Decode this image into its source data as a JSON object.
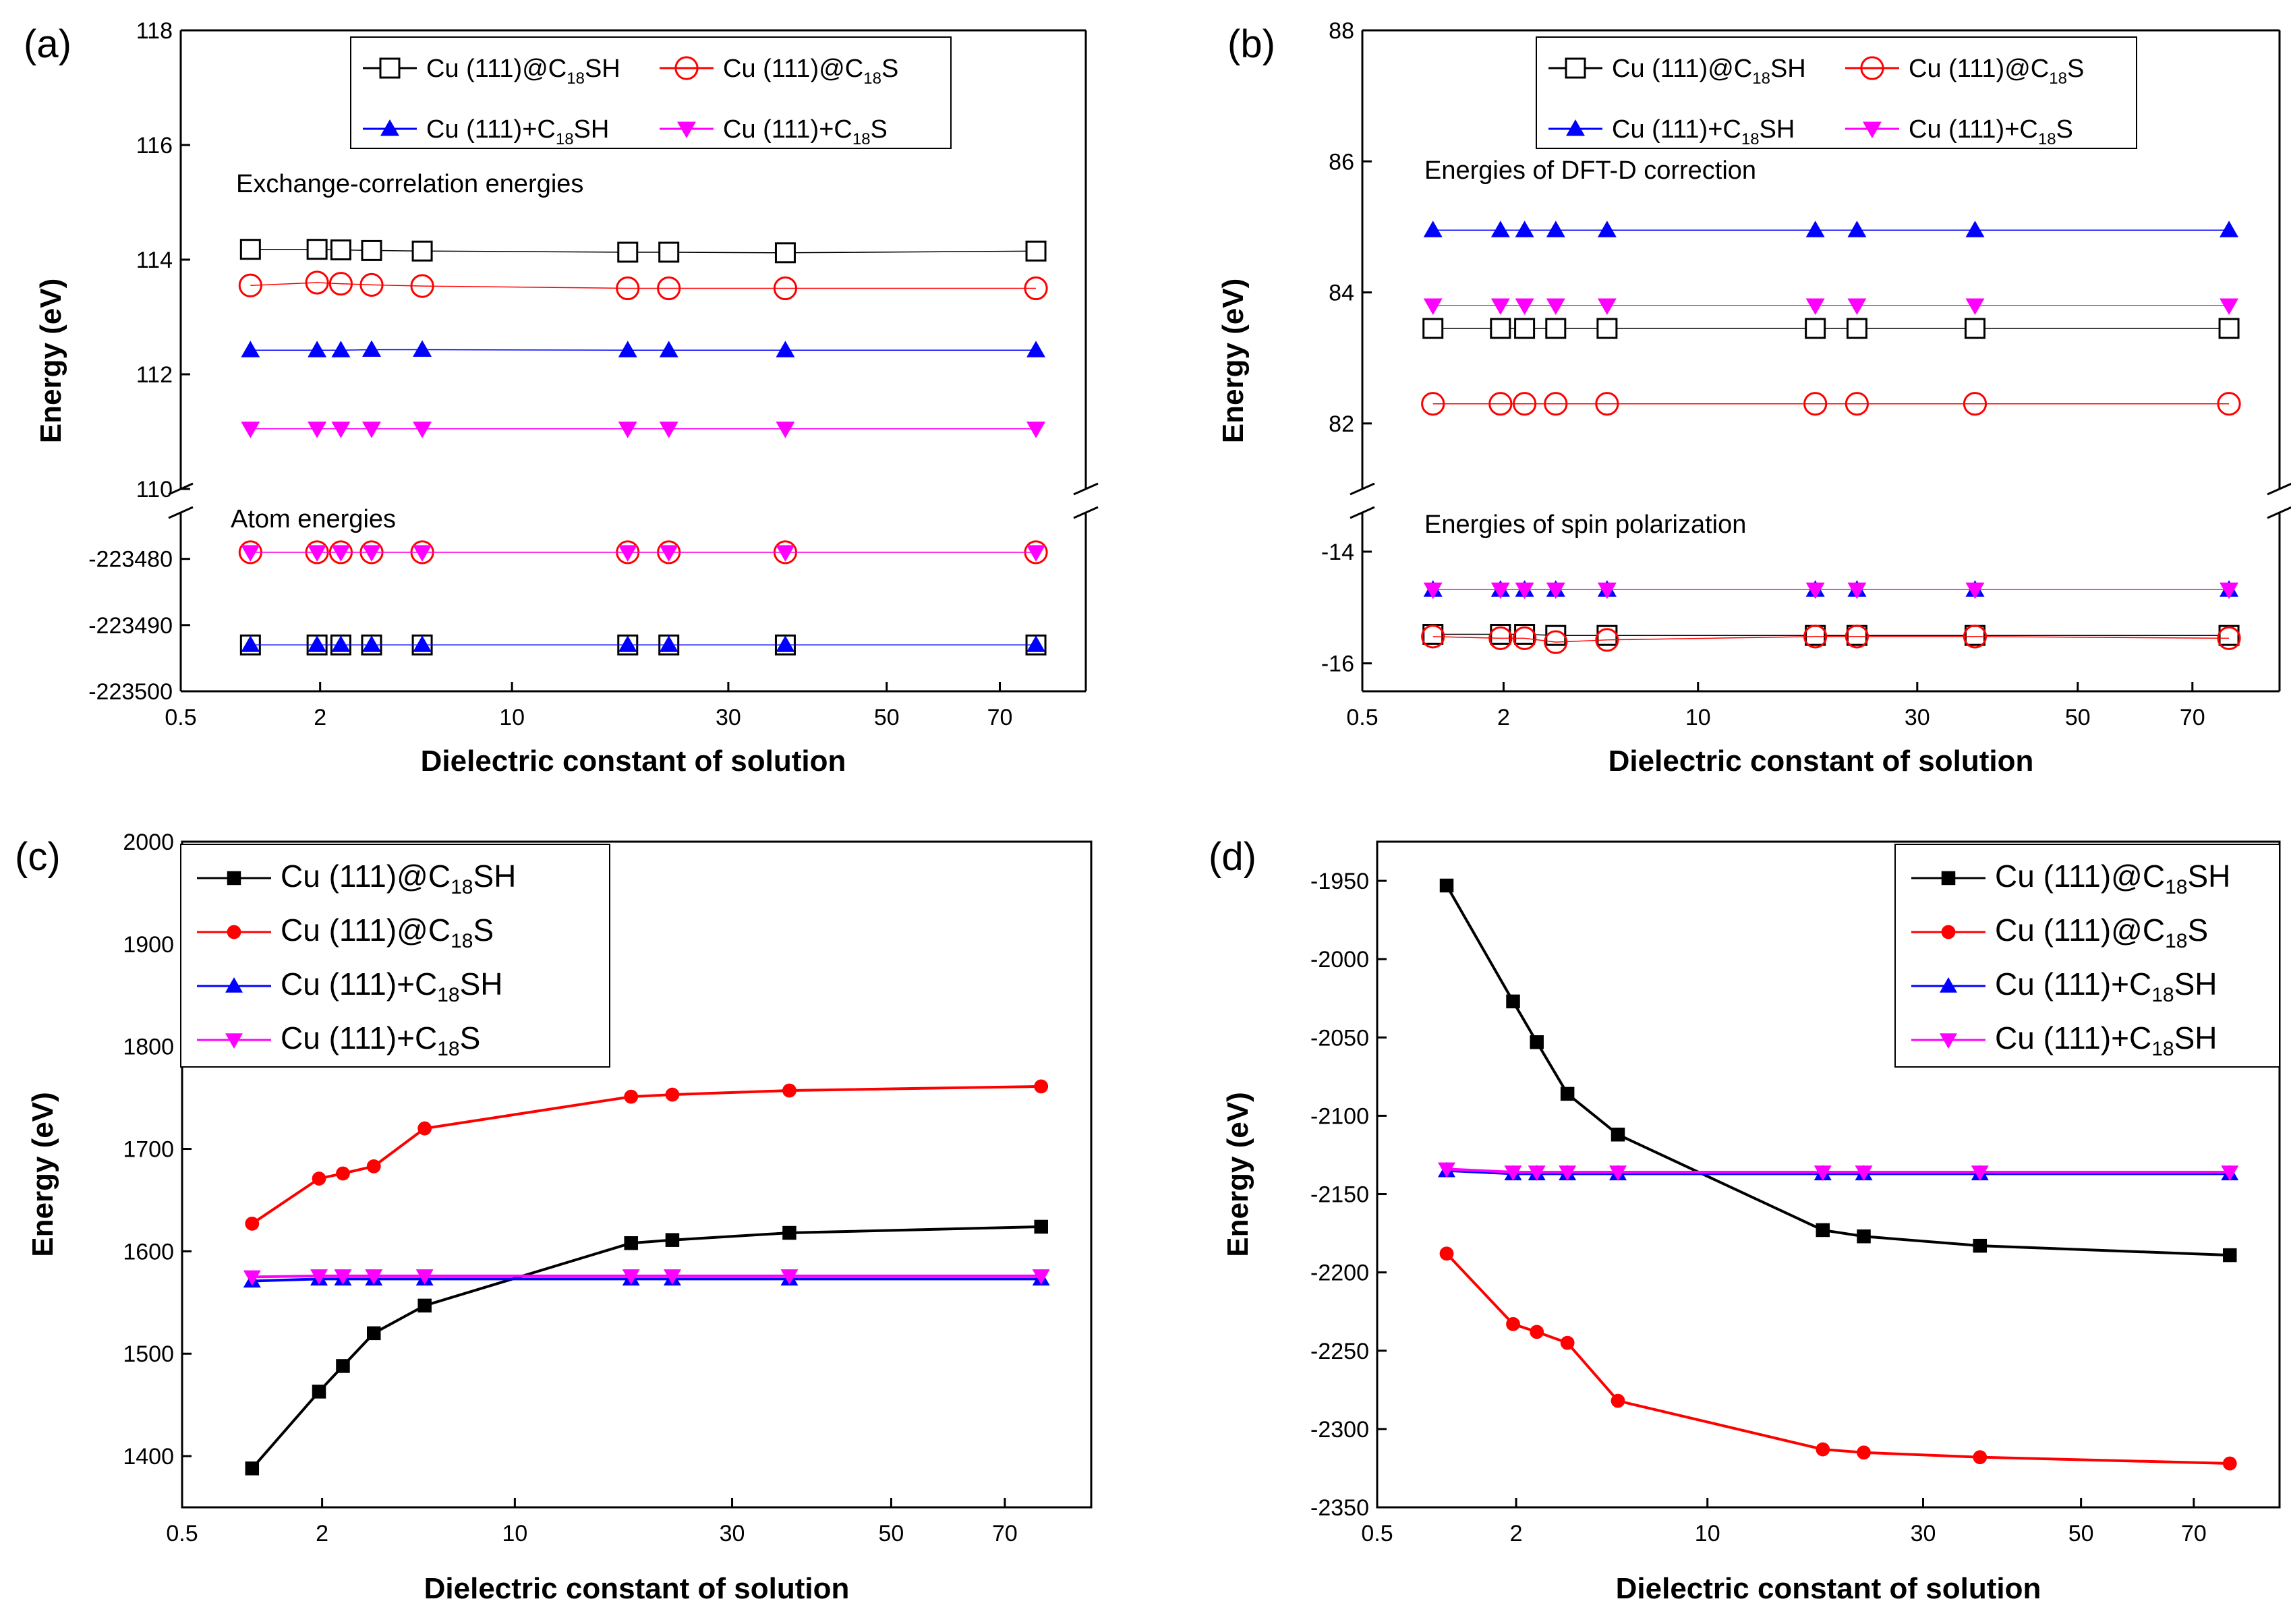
{
  "panels": {
    "a": {
      "letter": "(a)",
      "ylabel": "Energy (eV)",
      "xlabel": "Dielectric constant of solution",
      "annot_top": "Exchange-correlation energies",
      "annot_bottom": "Atom energies",
      "legend": [
        "Cu (111)@C",
        "SH",
        "Cu (111)@C",
        "S",
        "Cu (111)+C",
        "SH",
        "Cu (111)+C",
        "S"
      ],
      "sub": "18"
    },
    "b": {
      "letter": "(b)",
      "ylabel": "Energy (eV)",
      "xlabel": "Dielectric constant of solution",
      "annot_top": "Energies of DFT-D correction",
      "annot_bottom": "Energies of spin polarization",
      "sub": "18"
    },
    "c": {
      "letter": "(c)",
      "ylabel": "Energy (eV)",
      "xlabel": "Dielectric constant of solution",
      "sub": "18"
    },
    "d": {
      "letter": "(d)",
      "ylabel": "Energy (eV)",
      "xlabel": "Dielectric constant of solution",
      "sub": "18"
    }
  },
  "colors": {
    "black": "#000000",
    "red": "#ff0000",
    "blue": "#0000ff",
    "magenta": "#ff00ff"
  },
  "chart_data": [
    {
      "id": "a",
      "type": "line",
      "title": "",
      "xlabel": "Dielectric constant of solution",
      "ylabel": "Energy (eV)",
      "x_tick_labels": [
        "0.5",
        "2",
        "10",
        "30",
        "50",
        "70"
      ],
      "x": [
        1.0,
        1.94,
        2.38,
        3.08,
        4.71,
        20.7,
        24.5,
        37.2,
        78.4
      ],
      "broken_axis": true,
      "upper": {
        "ylim": [
          110,
          118
        ],
        "yticks": [
          "110",
          "112",
          "114",
          "116",
          "118"
        ],
        "series": [
          {
            "name": "Cu (111)@C18SH",
            "marker": "open-square",
            "color": "#000000",
            "values": [
              114.18,
              114.18,
              114.17,
              114.16,
              114.15,
              114.13,
              114.13,
              114.12,
              114.15
            ]
          },
          {
            "name": "Cu (111)@C18S",
            "marker": "open-circle",
            "color": "#ff0000",
            "values": [
              113.55,
              113.6,
              113.58,
              113.56,
              113.54,
              113.5,
              113.5,
              113.5,
              113.5
            ]
          },
          {
            "name": "Cu (111)+C18SH",
            "marker": "filled-triangle-up",
            "color": "#0000ff",
            "values": [
              112.42,
              112.42,
              112.42,
              112.43,
              112.43,
              112.42,
              112.42,
              112.42,
              112.42
            ]
          },
          {
            "name": "Cu (111)+C18S",
            "marker": "filled-triangle-down",
            "color": "#ff00ff",
            "values": [
              111.05,
              111.05,
              111.05,
              111.05,
              111.05,
              111.05,
              111.05,
              111.05,
              111.05
            ]
          }
        ]
      },
      "lower": {
        "ylim": [
          -223500,
          -223473
        ],
        "yticks": [
          "-223480",
          "-223490",
          "-223500"
        ],
        "series": [
          {
            "name": "Cu (111)@C18SH",
            "marker": "open-square",
            "color": "#000000",
            "values": [
              -223493,
              -223493,
              -223493,
              -223493,
              -223493,
              -223493,
              -223493,
              -223493,
              -223493
            ]
          },
          {
            "name": "Cu (111)+C18SH",
            "marker": "filled-triangle-up",
            "color": "#0000ff",
            "values": [
              -223493,
              -223493,
              -223493,
              -223493,
              -223493,
              -223493,
              -223493,
              -223493,
              -223493
            ]
          },
          {
            "name": "Cu (111)@C18S",
            "marker": "open-circle",
            "color": "#ff0000",
            "values": [
              -223479,
              -223479,
              -223479,
              -223479,
              -223479,
              -223479,
              -223479,
              -223479,
              -223479
            ]
          },
          {
            "name": "Cu (111)+C18S",
            "marker": "filled-triangle-down",
            "color": "#ff00ff",
            "values": [
              -223479,
              -223479,
              -223479,
              -223479,
              -223479,
              -223479,
              -223479,
              -223479,
              -223479
            ]
          }
        ]
      },
      "legend": "top-center"
    },
    {
      "id": "b",
      "type": "line",
      "title": "",
      "xlabel": "Dielectric constant of solution",
      "ylabel": "Energy (eV)",
      "x_tick_labels": [
        "0.5",
        "2",
        "10",
        "30",
        "50",
        "70"
      ],
      "x": [
        1.0,
        1.94,
        2.38,
        3.08,
        4.71,
        20.7,
        24.5,
        37.2,
        78.4
      ],
      "broken_axis": true,
      "upper": {
        "ylim": [
          81,
          88
        ],
        "yticks": [
          "82",
          "84",
          "86",
          "88"
        ],
        "series": [
          {
            "name": "Cu (111)+C18SH",
            "marker": "filled-triangle-up",
            "color": "#0000ff",
            "values": [
              84.95,
              84.95,
              84.95,
              84.95,
              84.95,
              84.95,
              84.95,
              84.95,
              84.95
            ]
          },
          {
            "name": "Cu (111)+C18S",
            "marker": "filled-triangle-down",
            "color": "#ff00ff",
            "values": [
              83.8,
              83.8,
              83.8,
              83.8,
              83.8,
              83.8,
              83.8,
              83.8,
              83.8
            ]
          },
          {
            "name": "Cu (111)@C18SH",
            "marker": "open-square",
            "color": "#000000",
            "values": [
              83.45,
              83.45,
              83.45,
              83.45,
              83.45,
              83.45,
              83.45,
              83.45,
              83.45
            ]
          },
          {
            "name": "Cu (111)@C18S",
            "marker": "open-circle",
            "color": "#ff0000",
            "values": [
              82.3,
              82.3,
              82.3,
              82.3,
              82.3,
              82.3,
              82.3,
              82.3,
              82.3
            ]
          }
        ]
      },
      "lower": {
        "ylim": [
          -16.5,
          -13.3
        ],
        "yticks": [
          "-14",
          "-16"
        ],
        "series": [
          {
            "name": "Cu (111)+C18SH",
            "marker": "filled-triangle-up",
            "color": "#0000ff",
            "values": [
              -14.68,
              -14.68,
              -14.68,
              -14.68,
              -14.68,
              -14.68,
              -14.68,
              -14.68,
              -14.68
            ]
          },
          {
            "name": "Cu (111)+C18S",
            "marker": "filled-triangle-down",
            "color": "#ff00ff",
            "values": [
              -14.68,
              -14.68,
              -14.68,
              -14.68,
              -14.68,
              -14.68,
              -14.68,
              -14.68,
              -14.68
            ]
          },
          {
            "name": "Cu (111)@C18SH",
            "marker": "open-square",
            "color": "#000000",
            "values": [
              -15.48,
              -15.48,
              -15.48,
              -15.5,
              -15.5,
              -15.5,
              -15.5,
              -15.5,
              -15.5
            ]
          },
          {
            "name": "Cu (111)@C18S",
            "marker": "open-circle",
            "color": "#ff0000",
            "values": [
              -15.52,
              -15.55,
              -15.55,
              -15.62,
              -15.58,
              -15.52,
              -15.52,
              -15.52,
              -15.55
            ]
          }
        ]
      },
      "legend": "top-center"
    },
    {
      "id": "c",
      "type": "line",
      "title": "",
      "xlabel": "Dielectric constant of solution",
      "ylabel": "Energy (eV)",
      "x_tick_labels": [
        "0.5",
        "2",
        "10",
        "30",
        "50",
        "70"
      ],
      "x": [
        1.0,
        1.94,
        2.38,
        3.08,
        4.71,
        20.7,
        24.5,
        37.2,
        78.4
      ],
      "ylim": [
        1350,
        2000
      ],
      "yticks": [
        "1400",
        "1500",
        "1600",
        "1700",
        "1800",
        "1900",
        "2000"
      ],
      "series": [
        {
          "name": "Cu (111)@C18SH",
          "marker": "filled-square",
          "color": "#000000",
          "values": [
            1388,
            1463,
            1488,
            1520,
            1547,
            1608,
            1611,
            1618,
            1624
          ]
        },
        {
          "name": "Cu (111)@C18S",
          "marker": "filled-circle",
          "color": "#ff0000",
          "values": [
            1627,
            1671,
            1676,
            1683,
            1720,
            1751,
            1753,
            1757,
            1761
          ]
        },
        {
          "name": "Cu (111)+C18SH",
          "marker": "filled-triangle-up",
          "color": "#0000ff",
          "values": [
            1571,
            1573,
            1573,
            1573,
            1573,
            1573,
            1573,
            1573,
            1573
          ]
        },
        {
          "name": "Cu (111)+C18S",
          "marker": "filled-triangle-down",
          "color": "#ff00ff",
          "values": [
            1575,
            1576,
            1576,
            1576,
            1576,
            1576,
            1576,
            1576,
            1576
          ]
        }
      ],
      "legend": "top-left"
    },
    {
      "id": "d",
      "type": "line",
      "title": "",
      "xlabel": "Dielectric constant of solution",
      "ylabel": "Energy (eV)",
      "x_tick_labels": [
        "0.5",
        "2",
        "10",
        "30",
        "50",
        "70"
      ],
      "x": [
        1.0,
        1.94,
        2.38,
        3.08,
        4.71,
        20.7,
        24.5,
        37.2,
        78.4
      ],
      "ylim": [
        -2350,
        -1925
      ],
      "yticks": [
        "-2350",
        "-2300",
        "-2250",
        "-2200",
        "-2150",
        "-2100",
        "-2050",
        "-2000",
        "-1950"
      ],
      "series": [
        {
          "name": "Cu (111)@C18SH",
          "marker": "filled-square",
          "color": "#000000",
          "values": [
            -1953,
            -2027,
            -2053,
            -2086,
            -2112,
            -2173,
            -2177,
            -2183,
            -2189
          ]
        },
        {
          "name": "Cu (111)@C18S",
          "marker": "filled-circle",
          "color": "#ff0000",
          "values": [
            -2188,
            -2233,
            -2238,
            -2245,
            -2282,
            -2313,
            -2315,
            -2318,
            -2322
          ]
        },
        {
          "name": "Cu (111)+C18SH",
          "marker": "filled-triangle-up",
          "color": "#0000ff",
          "values": [
            -2135,
            -2137,
            -2137,
            -2137,
            -2137,
            -2137,
            -2137,
            -2137,
            -2137
          ]
        },
        {
          "name": "Cu (111)+C18SH",
          "marker": "filled-triangle-down",
          "color": "#ff00ff",
          "values": [
            -2134,
            -2136,
            -2136,
            -2136,
            -2136,
            -2136,
            -2136,
            -2136,
            -2136
          ]
        }
      ],
      "legend": "top-right"
    }
  ]
}
